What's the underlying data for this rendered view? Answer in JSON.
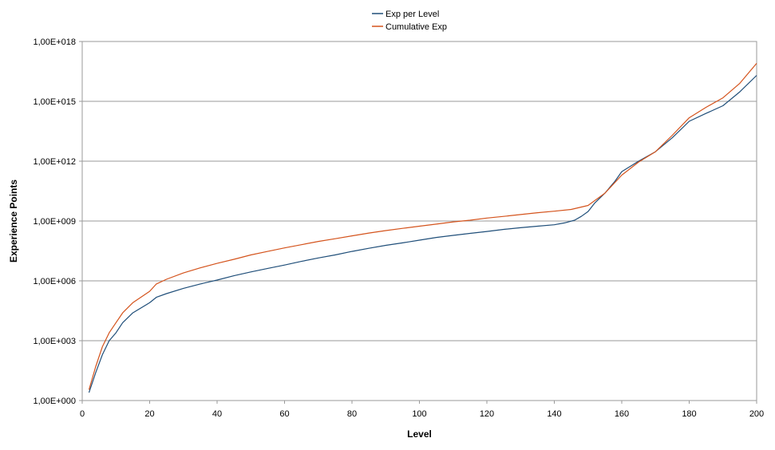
{
  "chart_data": {
    "type": "line",
    "title": "",
    "xlabel": "Level",
    "ylabel": "Experience Points",
    "xlim": [
      0,
      200
    ],
    "ylim": [
      1,
      1e+18
    ],
    "y_scale": "log",
    "x_ticks": [
      0,
      20,
      40,
      60,
      80,
      100,
      120,
      140,
      160,
      180,
      200
    ],
    "x_tick_labels": [
      "0",
      "20",
      "40",
      "60",
      "80",
      "100",
      "120",
      "140",
      "160",
      "180",
      "200"
    ],
    "y_ticks": [
      1,
      1000.0,
      1000000.0,
      1000000000.0,
      1000000000000.0,
      1000000000000000.0,
      1e+18
    ],
    "y_tick_labels": [
      "1,00E+000",
      "1,00E+003",
      "1,00E+006",
      "1,00E+009",
      "1,00E+012",
      "1,00E+015",
      "1,00E+018"
    ],
    "grid": "horizontal",
    "legend_position": "top",
    "series": [
      {
        "name": "Exp per Level",
        "color": "#1f4e79",
        "x": [
          2,
          4,
          6,
          8,
          10,
          12,
          15,
          20,
          22,
          25,
          30,
          35,
          40,
          45,
          50,
          55,
          60,
          65,
          70,
          75,
          80,
          85,
          90,
          95,
          100,
          105,
          110,
          115,
          120,
          125,
          130,
          135,
          140,
          143,
          146,
          148,
          150,
          152,
          155,
          158,
          160,
          165,
          170,
          175,
          180,
          185,
          190,
          195,
          200
        ],
        "y": [
          2.5,
          25,
          200,
          1000,
          2500,
          8000,
          25000,
          80000,
          150000,
          230000,
          420000,
          700000,
          1100000,
          1800000,
          2800000,
          4200000,
          6200000,
          9500000,
          14000000,
          20000000,
          30000000,
          43000000,
          60000000,
          80000000,
          110000000,
          150000000,
          190000000,
          240000000,
          300000000,
          380000000,
          460000000,
          550000000,
          650000000,
          800000000,
          1100000000,
          1700000000,
          3000000000,
          8000000000,
          25000000000,
          100000000000,
          300000000000,
          1000000000000,
          3000000000000,
          15000000000000,
          100000000000000,
          250000000000000,
          600000000000000,
          3000000000000000,
          20000000000000000
        ]
      },
      {
        "name": "Cumulative Exp",
        "color": "#d4531c",
        "x": [
          2,
          4,
          6,
          8,
          10,
          12,
          15,
          20,
          22,
          25,
          30,
          35,
          40,
          45,
          50,
          55,
          60,
          65,
          70,
          75,
          80,
          85,
          90,
          95,
          100,
          105,
          110,
          115,
          120,
          125,
          130,
          135,
          140,
          145,
          150,
          155,
          160,
          165,
          170,
          175,
          180,
          185,
          190,
          195,
          200
        ],
        "y": [
          3.5,
          50,
          500,
          2500,
          8000,
          25000,
          80000,
          300000,
          700000,
          1200000,
          2500000,
          4500000,
          7500000,
          12000000,
          20000000,
          30000000,
          45000000,
          65000000,
          95000000,
          130000000,
          180000000,
          250000000,
          330000000,
          430000000,
          550000000,
          700000000,
          900000000,
          1100000000,
          1400000000,
          1700000000,
          2100000000,
          2600000000,
          3100000000,
          3800000000,
          6000000000,
          25000000000,
          200000000000,
          900000000000,
          3000000000000,
          20000000000000,
          150000000000000,
          500000000000000,
          1500000000000000,
          8000000000000000,
          80000000000000000
        ]
      }
    ]
  }
}
